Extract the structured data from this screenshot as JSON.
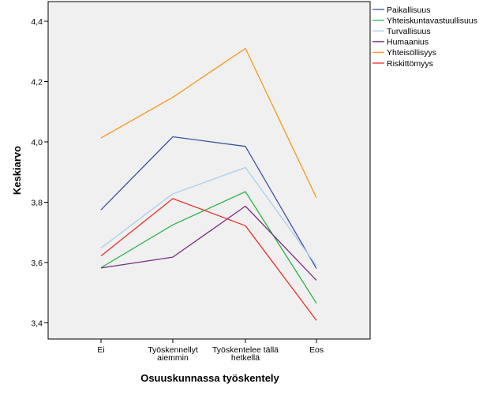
{
  "chart_data": {
    "type": "line",
    "title": "",
    "xlabel": "Osuuskunnassa työskentely",
    "ylabel": "Keskiarvo",
    "categories": [
      [
        "Ei"
      ],
      [
        "Työskennellyt",
        "aiemmin"
      ],
      [
        "Työskentelee tällä",
        "hetkellä"
      ],
      [
        "Eos"
      ]
    ],
    "ylim": [
      3.35,
      4.45
    ],
    "yticks": [
      "3,4",
      "3,6",
      "3,8",
      "4,0",
      "4,2",
      "4,4"
    ],
    "ytick_values": [
      3.4,
      3.6,
      3.8,
      4.0,
      4.2,
      4.4
    ],
    "grid": false,
    "legend_position": "right",
    "series": [
      {
        "name": "Paikallisuus",
        "color": "#3b55a3",
        "values": [
          3.775,
          4.017,
          3.985,
          3.58
        ]
      },
      {
        "name": "Yhteiskuntavastuullisuus",
        "color": "#2cb34a",
        "values": [
          3.583,
          3.725,
          3.835,
          3.465
        ]
      },
      {
        "name": "Turvallisuus",
        "color": "#a9cdee",
        "values": [
          3.648,
          3.828,
          3.915,
          3.59
        ]
      },
      {
        "name": "Humaanius",
        "color": "#7b2c83",
        "values": [
          3.582,
          3.618,
          3.787,
          3.541
        ]
      },
      {
        "name": "Yhteisöllisyys",
        "color": "#f7981d",
        "values": [
          4.013,
          4.148,
          4.31,
          3.815
        ]
      },
      {
        "name": "Riskittömyys",
        "color": "#ea2e2e",
        "values": [
          3.622,
          3.812,
          3.722,
          3.408
        ]
      }
    ]
  }
}
